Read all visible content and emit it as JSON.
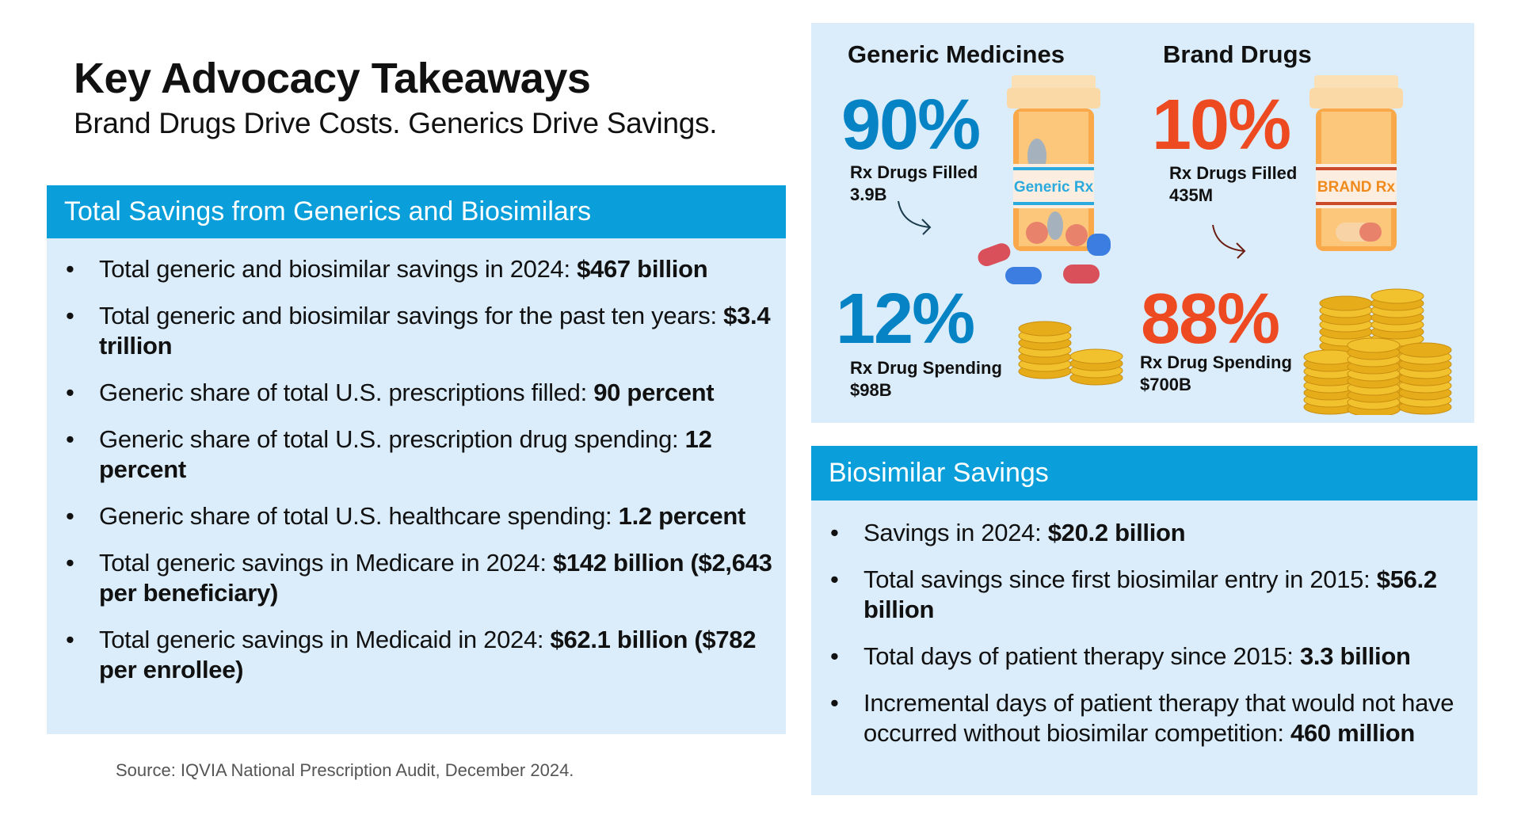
{
  "title": "Key Advocacy Takeaways",
  "subtitle": "Brand Drugs Drive Costs. Generics Drive Savings.",
  "colors": {
    "header": "#0a9fdb",
    "panel": "#dbedfb",
    "generic": "#0583c4",
    "brand": "#ee4a22"
  },
  "total_savings": {
    "heading": "Total Savings from Generics and Biosimilars",
    "items": [
      {
        "text": "Total generic and biosimilar savings in 2024: ",
        "bold": "$467 billion"
      },
      {
        "text": "Total generic and biosimilar savings for the past ten years: ",
        "bold": "$3.4 trillion"
      },
      {
        "text": "Generic share of total U.S. prescriptions filled: ",
        "bold": "90 percent"
      },
      {
        "text": "Generic share of total U.S. prescription drug spending: ",
        "bold": "12 percent"
      },
      {
        "text": "Generic share of total U.S. healthcare spending: ",
        "bold": "1.2 percent"
      },
      {
        "text": "Total generic savings in Medicare in 2024: ",
        "bold": "$142 billion ($2,643 per beneficiary)"
      },
      {
        "text": "Total generic savings in Medicaid in 2024: ",
        "bold": "$62.1 billion ($782 per enrollee)"
      }
    ]
  },
  "source": "Source: IQVIA National Prescription Audit, December 2024.",
  "infographic": {
    "generic": {
      "heading": "Generic Medicines",
      "filled_pct": "90%",
      "filled_label": "Rx Drugs Filled",
      "filled_value": "3.9B",
      "bottle_label": "Generic Rx",
      "spend_pct": "12%",
      "spend_label": "Rx Drug Spending",
      "spend_value": "$98B"
    },
    "brand": {
      "heading": "Brand Drugs",
      "filled_pct": "10%",
      "filled_label": "Rx Drugs Filled",
      "filled_value": "435M",
      "bottle_label": "BRAND Rx",
      "spend_pct": "88%",
      "spend_label": "Rx Drug Spending",
      "spend_value": "$700B"
    }
  },
  "biosimilar": {
    "heading": "Biosimilar Savings",
    "items": [
      {
        "text": "Savings in 2024: ",
        "bold": "$20.2 billion"
      },
      {
        "text": "Total savings since first biosimilar entry in 2015: ",
        "bold": "$56.2 billion"
      },
      {
        "text": "Total days of patient therapy since 2015: ",
        "bold": "3.3 billion"
      },
      {
        "text": "Incremental days of patient therapy that would not have occurred without biosimilar competition: ",
        "bold": "460 million"
      }
    ]
  }
}
